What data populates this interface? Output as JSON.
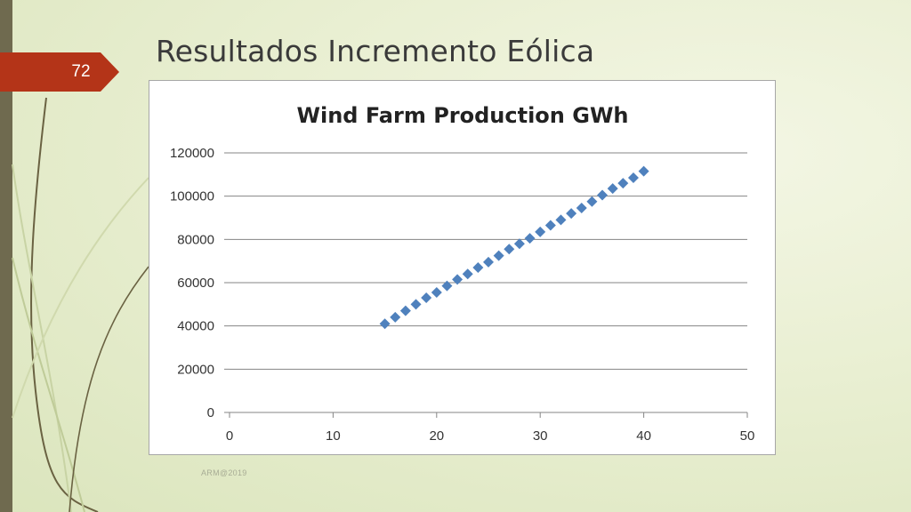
{
  "slide": {
    "title": "Resultados Incremento Eólica",
    "page_number": "72",
    "footer": "ARM@2019"
  },
  "colors": {
    "background": "#e9efd2",
    "left_bar": "#6f6a4f",
    "page_tag": "#b43418",
    "marker": "#4f81bd",
    "gridline": "#858585"
  },
  "chart_data": {
    "type": "scatter",
    "title": "Wind Farm Production GWh",
    "xlabel": "",
    "ylabel": "",
    "xlim": [
      0,
      50
    ],
    "ylim": [
      0,
      120000
    ],
    "x_ticks": [
      "0",
      "10",
      "20",
      "30",
      "40",
      "50"
    ],
    "y_ticks": [
      "0",
      "20000",
      "40000",
      "60000",
      "80000",
      "100000",
      "120000"
    ],
    "grid": "horizontal",
    "legend": "none",
    "marker": "diamond",
    "series": [
      {
        "x": [
          15,
          16,
          17,
          18,
          19,
          20,
          21,
          22,
          23,
          24,
          25,
          26,
          27,
          28,
          29,
          30,
          31,
          32,
          33,
          34,
          35,
          36,
          37,
          38,
          39,
          40
        ],
        "y": [
          41000,
          44000,
          47000,
          50000,
          53000,
          55500,
          58500,
          61500,
          64000,
          67000,
          69500,
          72500,
          75500,
          78000,
          80500,
          83500,
          86500,
          89000,
          92000,
          94500,
          97500,
          100500,
          103500,
          106000,
          108500,
          111500
        ]
      }
    ]
  }
}
